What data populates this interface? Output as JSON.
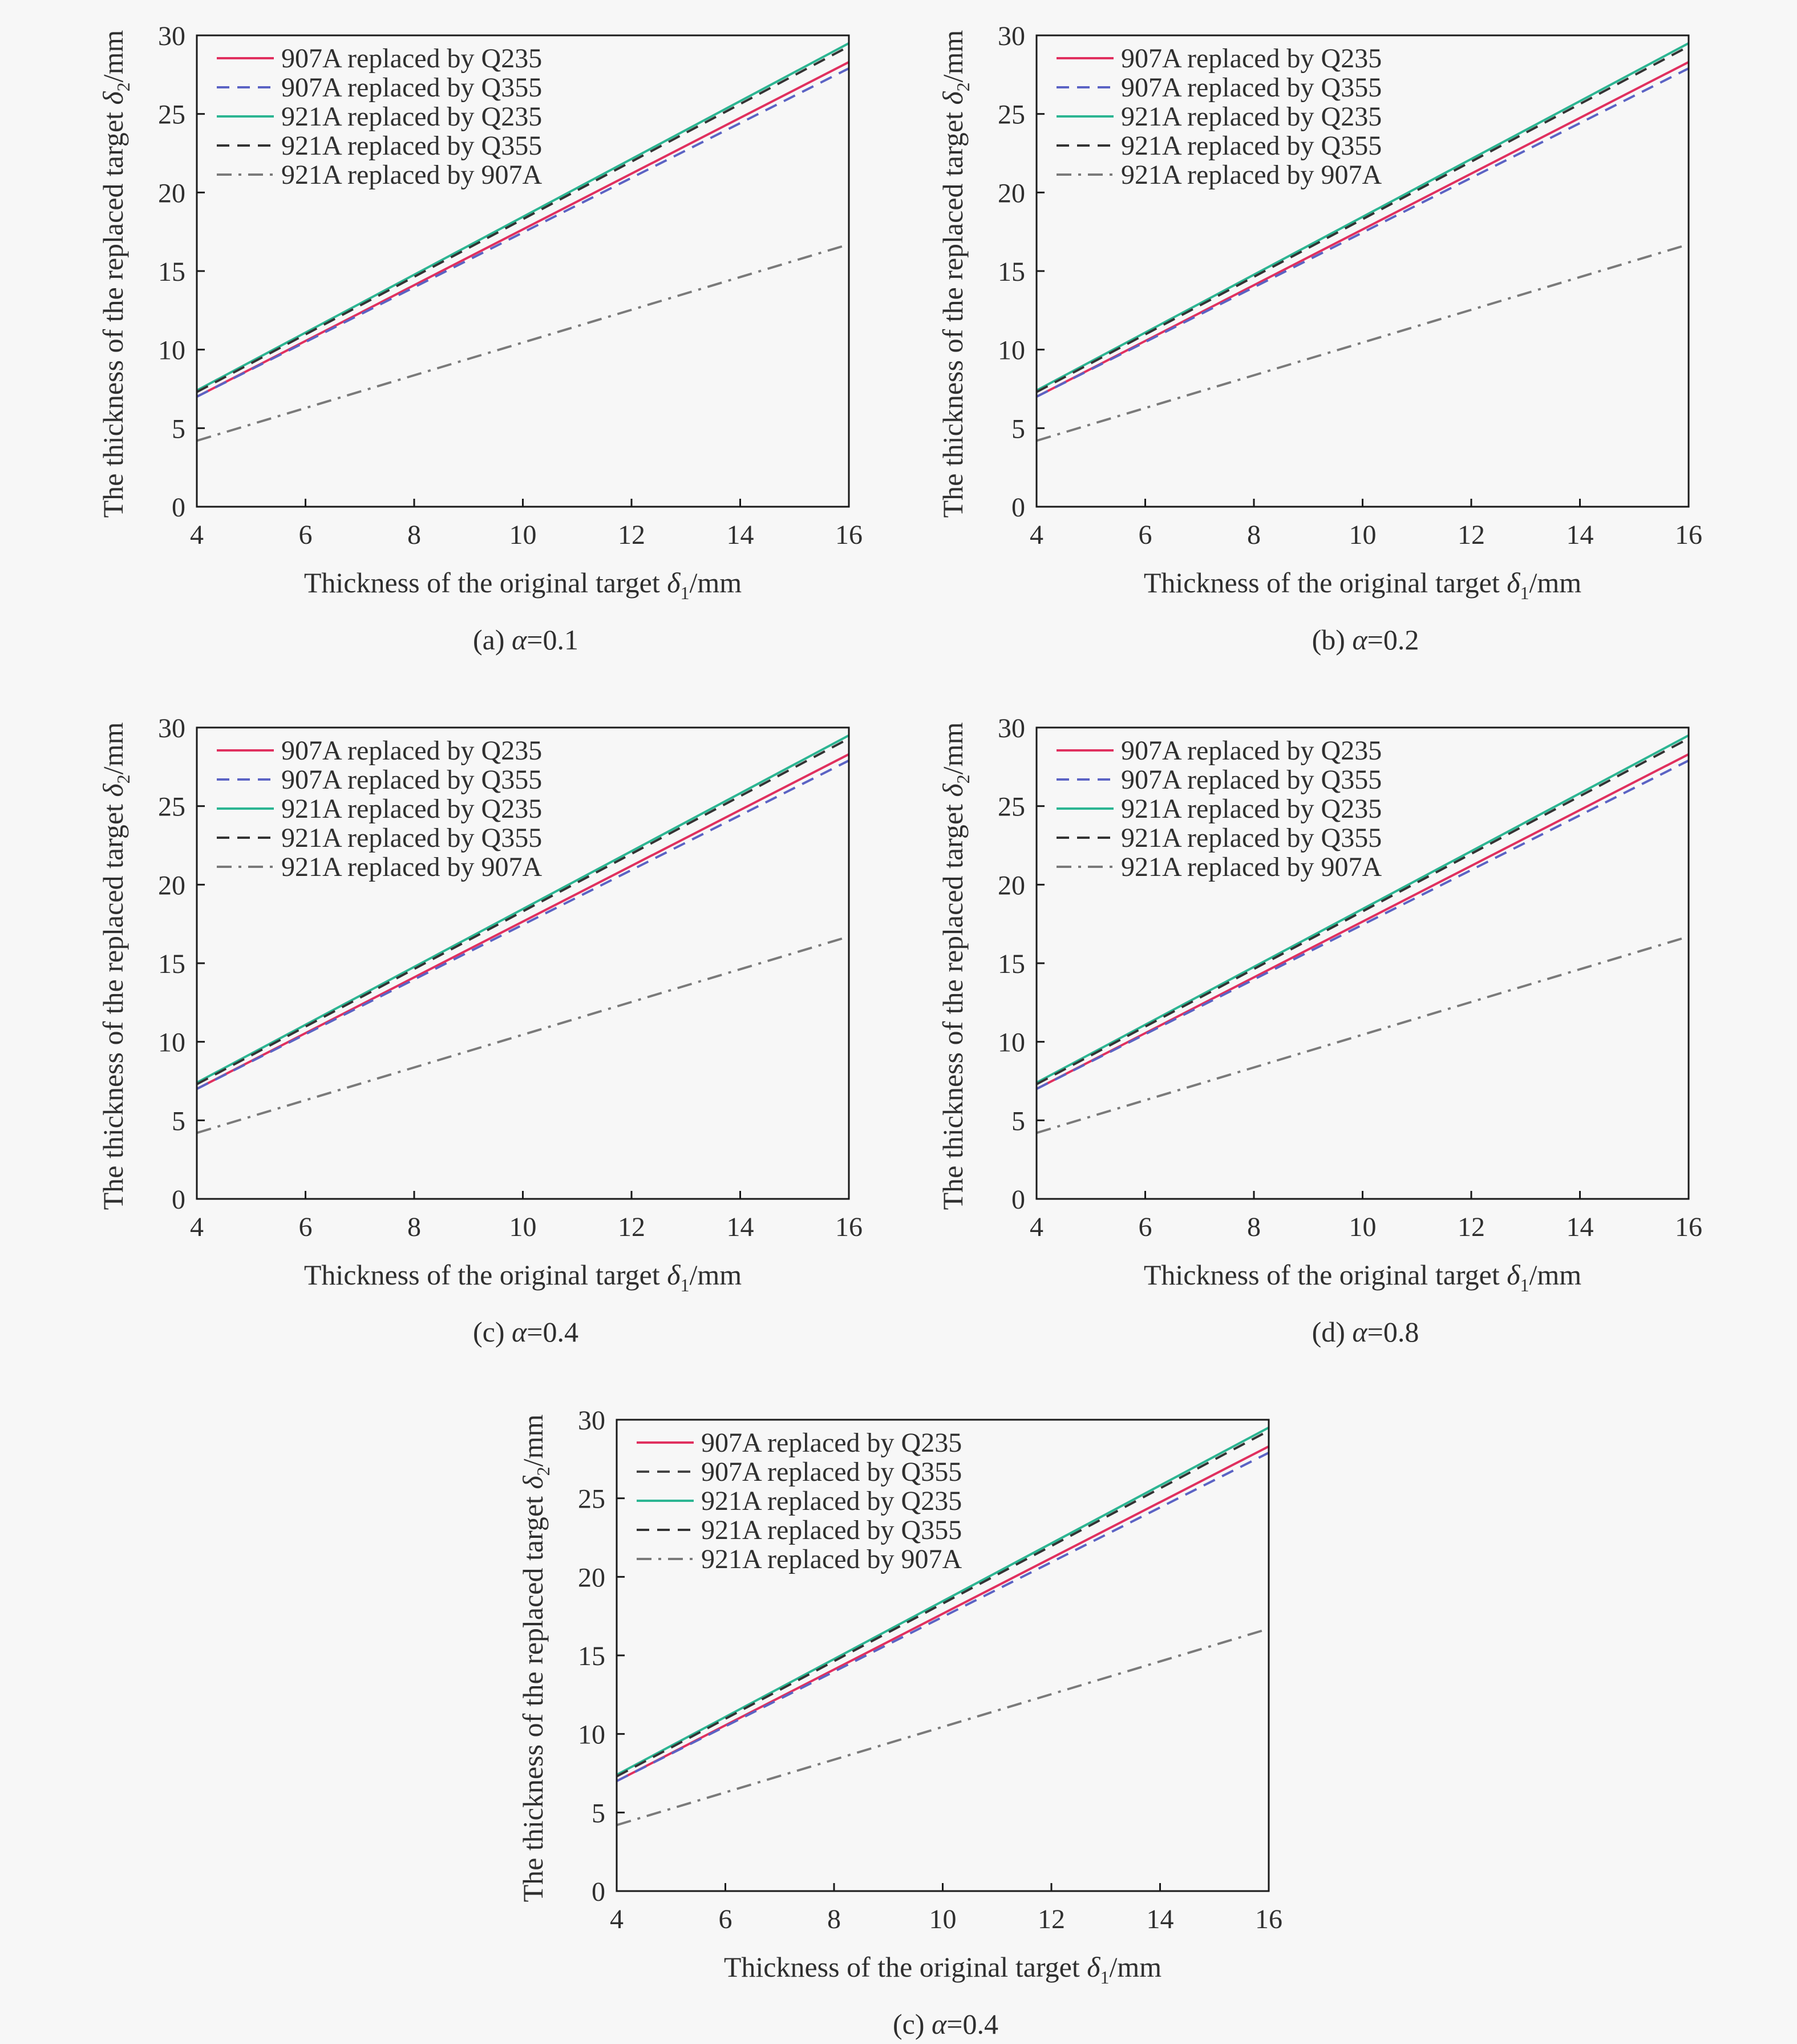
{
  "colors": {
    "background": "#f7f7f7",
    "axis": "#1a1a1a",
    "text": "#2f2f2f",
    "series": [
      "#e0305f",
      "#5b63c4",
      "#2cb592",
      "#333333",
      "#7a7a7a"
    ],
    "series_5_bottom_panel_line2": "#444444"
  },
  "line_styles": [
    "solid",
    "dashed",
    "solid",
    "dashed",
    "dashdot"
  ],
  "axes_text": {
    "xlabel_prefix": "Thickness of the original target ",
    "xlabel_symbol": "δ",
    "xlabel_subscript": "1",
    "xlabel_suffix": "/mm",
    "ylabel_prefix": "The thickness of the replaced target ",
    "ylabel_symbol": "δ",
    "ylabel_subscript": "2",
    "ylabel_suffix": "/mm"
  },
  "chart_data": [
    {
      "type": "line",
      "caption_letter": "(a) ",
      "caption_symbol": "α",
      "caption_value": "=0.1",
      "x": [
        4,
        16
      ],
      "xlim": [
        4,
        16
      ],
      "ylim": [
        0,
        30
      ],
      "xticks": [
        4,
        6,
        8,
        10,
        12,
        14,
        16
      ],
      "yticks": [
        0,
        5,
        10,
        15,
        20,
        25,
        30
      ],
      "legend_position": "top-left",
      "grid": false,
      "series": [
        {
          "name": "907A replaced by Q235",
          "values": [
            7.0,
            28.3
          ]
        },
        {
          "name": "907A replaced by Q355",
          "values": [
            7.0,
            27.9
          ]
        },
        {
          "name": "921A replaced by Q235",
          "values": [
            7.4,
            29.5
          ]
        },
        {
          "name": "921A replaced by Q355",
          "values": [
            7.3,
            29.3
          ]
        },
        {
          "name": "921A replaced by 907A",
          "values": [
            4.2,
            16.7
          ]
        }
      ]
    },
    {
      "type": "line",
      "caption_letter": "(b) ",
      "caption_symbol": "α",
      "caption_value": "=0.2",
      "x": [
        4,
        16
      ],
      "xlim": [
        4,
        16
      ],
      "ylim": [
        0,
        30
      ],
      "xticks": [
        4,
        6,
        8,
        10,
        12,
        14,
        16
      ],
      "yticks": [
        0,
        5,
        10,
        15,
        20,
        25,
        30
      ],
      "legend_position": "top-left",
      "grid": false,
      "series": [
        {
          "name": "907A replaced by Q235",
          "values": [
            7.0,
            28.3
          ]
        },
        {
          "name": "907A replaced by Q355",
          "values": [
            7.0,
            27.9
          ]
        },
        {
          "name": "921A replaced by Q235",
          "values": [
            7.4,
            29.5
          ]
        },
        {
          "name": "921A replaced by Q355",
          "values": [
            7.3,
            29.3
          ]
        },
        {
          "name": "921A replaced by 907A",
          "values": [
            4.2,
            16.7
          ]
        }
      ]
    },
    {
      "type": "line",
      "caption_letter": "(c) ",
      "caption_symbol": "α",
      "caption_value": "=0.4",
      "x": [
        4,
        16
      ],
      "xlim": [
        4,
        16
      ],
      "ylim": [
        0,
        30
      ],
      "xticks": [
        4,
        6,
        8,
        10,
        12,
        14,
        16
      ],
      "yticks": [
        0,
        5,
        10,
        15,
        20,
        25,
        30
      ],
      "legend_position": "top-left",
      "grid": false,
      "series": [
        {
          "name": "907A replaced by Q235",
          "values": [
            7.0,
            28.3
          ]
        },
        {
          "name": "907A replaced by Q355",
          "values": [
            7.0,
            27.9
          ]
        },
        {
          "name": "921A replaced by Q235",
          "values": [
            7.4,
            29.5
          ]
        },
        {
          "name": "921A replaced by Q355",
          "values": [
            7.3,
            29.3
          ]
        },
        {
          "name": "921A replaced by 907A",
          "values": [
            4.2,
            16.7
          ]
        }
      ]
    },
    {
      "type": "line",
      "caption_letter": "(d) ",
      "caption_symbol": "α",
      "caption_value": "=0.8",
      "x": [
        4,
        16
      ],
      "xlim": [
        4,
        16
      ],
      "ylim": [
        0,
        30
      ],
      "xticks": [
        4,
        6,
        8,
        10,
        12,
        14,
        16
      ],
      "yticks": [
        0,
        5,
        10,
        15,
        20,
        25,
        30
      ],
      "legend_position": "top-left",
      "grid": false,
      "series": [
        {
          "name": "907A replaced by Q235",
          "values": [
            7.0,
            28.3
          ]
        },
        {
          "name": "907A replaced by Q355",
          "values": [
            7.0,
            27.9
          ]
        },
        {
          "name": "921A replaced by Q235",
          "values": [
            7.4,
            29.5
          ]
        },
        {
          "name": "921A replaced by Q355",
          "values": [
            7.3,
            29.3
          ]
        },
        {
          "name": "921A replaced by 907A",
          "values": [
            4.2,
            16.7
          ]
        }
      ]
    },
    {
      "type": "line",
      "caption_letter": "(c) ",
      "caption_symbol": "α",
      "caption_value": "=0.4",
      "x": [
        4,
        16
      ],
      "xlim": [
        4,
        16
      ],
      "ylim": [
        0,
        30
      ],
      "xticks": [
        4,
        6,
        8,
        10,
        12,
        14,
        16
      ],
      "yticks": [
        0,
        5,
        10,
        15,
        20,
        25,
        30
      ],
      "legend_position": "top-left",
      "grid": false,
      "series": [
        {
          "name": "907A replaced by Q235",
          "values": [
            7.0,
            28.3
          ]
        },
        {
          "name": "907A replaced by Q355",
          "values": [
            7.0,
            27.9
          ]
        },
        {
          "name": "921A replaced by Q235",
          "values": [
            7.4,
            29.5
          ]
        },
        {
          "name": "921A replaced by Q355",
          "values": [
            7.3,
            29.3
          ]
        },
        {
          "name": "921A replaced by 907A",
          "values": [
            4.2,
            16.7
          ]
        }
      ]
    }
  ]
}
